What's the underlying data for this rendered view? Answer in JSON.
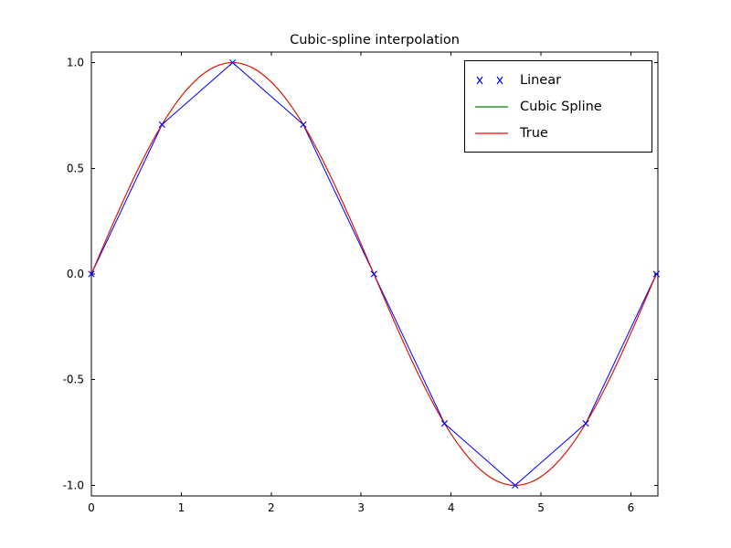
{
  "chart_data": {
    "type": "line",
    "title": "Cubic-spline interpolation",
    "xlabel": "",
    "ylabel": "",
    "xlim": [
      0,
      6.3
    ],
    "ylim": [
      -1.05,
      1.05
    ],
    "xticks": [
      0,
      1,
      2,
      3,
      4,
      5,
      6
    ],
    "xtick_labels": [
      "0",
      "1",
      "2",
      "3",
      "4",
      "5",
      "6"
    ],
    "yticks": [
      -1.0,
      -0.5,
      0.0,
      0.5,
      1.0
    ],
    "ytick_labels": [
      "-1.0",
      "-0.5",
      "0.0",
      "0.5",
      "1.0"
    ],
    "grid": false,
    "legend_position": "upper right",
    "background_color": "#ffffff",
    "axis_color": "#000000",
    "knots": {
      "x": [
        0,
        0.7854,
        1.5708,
        2.3562,
        3.1416,
        3.927,
        4.7124,
        5.4978,
        6.2832
      ],
      "y": [
        0,
        0.7071,
        1.0,
        0.7071,
        0,
        -0.7071,
        -1.0,
        -0.7071,
        0
      ]
    },
    "series": [
      {
        "name": "Linear",
        "color": "#0000ff",
        "style": "linear-interpolation-with-x-markers",
        "marker": "x"
      },
      {
        "name": "Cubic Spline",
        "color": "#008000",
        "style": "natural-cubic-spline-through-knots"
      },
      {
        "name": "True",
        "color": "#ff0000",
        "style": "sine-function"
      }
    ]
  }
}
